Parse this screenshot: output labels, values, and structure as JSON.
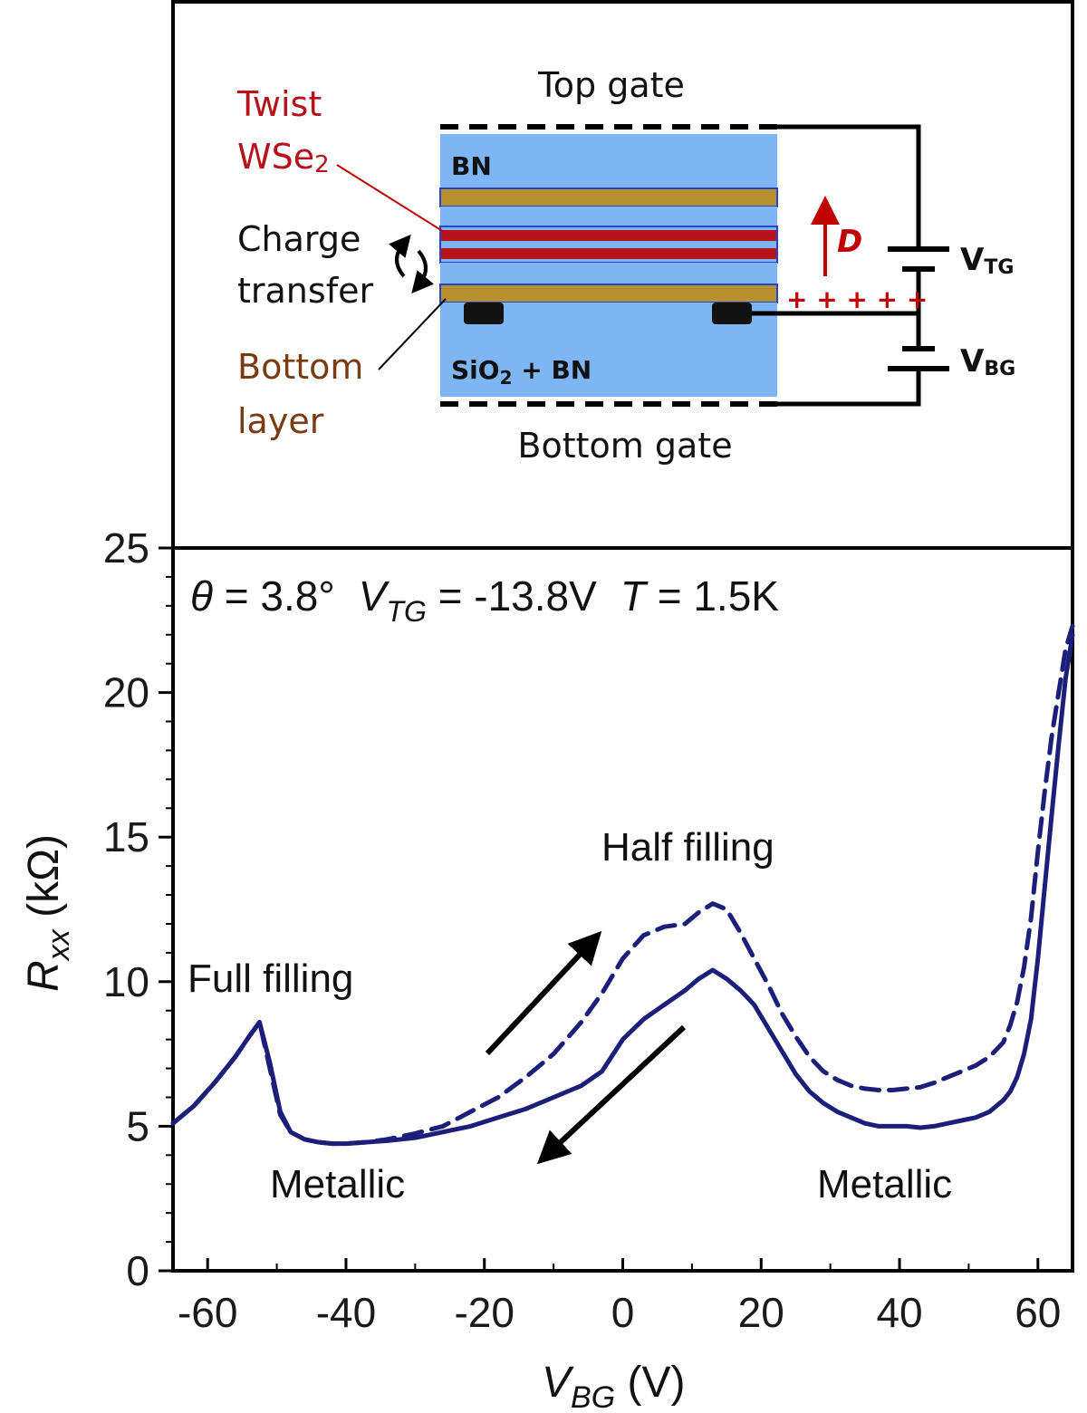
{
  "schematic": {
    "top_gate": "Top gate",
    "bottom_gate": "Bottom gate",
    "bn_top": "BN",
    "bn_bottom": {
      "main": "SiO",
      "sub": "2",
      "rest": " + BN"
    },
    "twist_line1": "Twist",
    "twist_line2": {
      "main": "WSe",
      "sub": "2"
    },
    "charge_line1": "Charge",
    "charge_line2": "transfer",
    "bottom_line1": "Bottom",
    "bottom_line2": "layer",
    "field_label": "D",
    "charges": "+ + + + +",
    "vtg": {
      "main": "V",
      "sub": "TG"
    },
    "vbg": {
      "main": "V",
      "sub": "BG"
    },
    "colors": {
      "bn": "#7eb6f5",
      "gold": "#b8902e",
      "twist": "#b5121b",
      "annotation_red": "#c00000",
      "annotation_brown": "#7a3b12"
    }
  },
  "chart_data": {
    "type": "line",
    "title": "",
    "header": {
      "theta": {
        "sym": "θ",
        "rest": " = 3.8°"
      },
      "vtg": {
        "sym": "V",
        "sub": "TG",
        "rest": " = -13.8V"
      },
      "temp": {
        "sym": "T",
        "rest": " = 1.5K"
      }
    },
    "xlabel": {
      "sym": "V",
      "sub": "BG",
      "unit": " (V)"
    },
    "ylabel": {
      "sym": "R",
      "sub": "xx",
      "unit": " (kΩ)"
    },
    "xlim": [
      -65,
      65
    ],
    "ylim": [
      0,
      25
    ],
    "xticks": [
      -60,
      -40,
      -20,
      0,
      20,
      40,
      60
    ],
    "yticks": [
      0,
      5,
      10,
      15,
      20,
      25
    ],
    "grid": false,
    "series": [
      {
        "style": "dashed",
        "sweep": "forward",
        "color": "#1c1f7a",
        "x": [
          -65,
          -62,
          -59,
          -56,
          -54,
          -52.5,
          -51,
          -49.5,
          -48,
          -46,
          -44,
          -42,
          -40,
          -37,
          -34,
          -30,
          -26,
          -22,
          -18,
          -14,
          -10,
          -6,
          -3,
          0,
          3,
          6,
          9,
          11,
          13,
          15,
          17,
          19,
          21,
          23,
          25,
          27,
          29,
          31,
          33,
          35,
          37,
          39,
          41,
          43,
          45,
          47,
          49,
          51,
          53,
          55,
          56,
          57,
          58,
          59,
          60,
          61,
          62,
          63,
          64,
          65
        ],
        "y": [
          5.1,
          5.7,
          6.5,
          7.4,
          8.1,
          8.6,
          7.0,
          5.4,
          4.8,
          4.55,
          4.45,
          4.4,
          4.4,
          4.45,
          4.55,
          4.75,
          5.0,
          5.5,
          6.0,
          6.7,
          7.5,
          8.6,
          9.6,
          10.8,
          11.6,
          11.9,
          12.0,
          12.4,
          12.7,
          12.5,
          11.7,
          10.8,
          9.9,
          8.9,
          8.1,
          7.4,
          6.9,
          6.6,
          6.4,
          6.3,
          6.25,
          6.25,
          6.3,
          6.35,
          6.5,
          6.7,
          6.9,
          7.1,
          7.4,
          7.9,
          8.5,
          9.3,
          10.5,
          12.2,
          14.5,
          16.6,
          18.5,
          20.0,
          21.5,
          22.3
        ]
      },
      {
        "style": "solid",
        "sweep": "backward",
        "color": "#1c1f7a",
        "x": [
          -65,
          -62,
          -59,
          -56,
          -54,
          -52.5,
          -51,
          -49.5,
          -48,
          -46,
          -44,
          -42,
          -40,
          -37,
          -34,
          -30,
          -26,
          -22,
          -18,
          -14,
          -10,
          -6,
          -3,
          0,
          3,
          6,
          9,
          11,
          13,
          15,
          17,
          19,
          21,
          23,
          25,
          27,
          29,
          31,
          33,
          35,
          37,
          39,
          41,
          43,
          45,
          47,
          49,
          51,
          53,
          55,
          56,
          57,
          58,
          59,
          60,
          61,
          62,
          63,
          64,
          65
        ],
        "y": [
          5.1,
          5.7,
          6.5,
          7.4,
          8.1,
          8.6,
          7.2,
          5.5,
          4.8,
          4.55,
          4.45,
          4.4,
          4.4,
          4.45,
          4.5,
          4.6,
          4.8,
          5.0,
          5.3,
          5.6,
          6.0,
          6.4,
          6.9,
          8.0,
          8.7,
          9.2,
          9.7,
          10.1,
          10.4,
          10.1,
          9.7,
          9.2,
          8.4,
          7.6,
          6.8,
          6.2,
          5.8,
          5.5,
          5.3,
          5.1,
          5.0,
          5.0,
          5.0,
          4.95,
          5.0,
          5.1,
          5.2,
          5.3,
          5.5,
          5.9,
          6.2,
          6.7,
          7.5,
          8.7,
          10.8,
          13.3,
          15.8,
          18.2,
          20.5,
          22.0
        ]
      }
    ],
    "annotations": {
      "full_filling": "Full filling",
      "half_filling": "Half filling",
      "metallic_left": "Metallic",
      "metallic_right": "Metallic"
    }
  }
}
